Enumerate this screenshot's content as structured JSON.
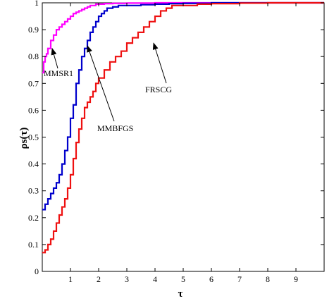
{
  "chart_data": {
    "type": "line",
    "title": "",
    "xlabel": "τ",
    "ylabel": "ρs(τ)",
    "xlim": [
      0,
      10
    ],
    "ylim": [
      0,
      1
    ],
    "xticks": [
      1,
      2,
      3,
      4,
      5,
      6,
      7,
      8,
      9
    ],
    "yticks": [
      0,
      0.1,
      0.2,
      0.3,
      0.4,
      0.5,
      0.6,
      0.7,
      0.8,
      0.9,
      1
    ],
    "grid": false,
    "legend": "none",
    "series": [
      {
        "name": "MMSR1",
        "color": "#ff00ff",
        "x": [
          0,
          0.05,
          0.1,
          0.15,
          0.2,
          0.3,
          0.4,
          0.5,
          0.6,
          0.7,
          0.8,
          0.9,
          1.0,
          1.1,
          1.2,
          1.3,
          1.4,
          1.5,
          1.6,
          1.7,
          1.8,
          1.9,
          2.0,
          2.2,
          2.5,
          3,
          4,
          5,
          6,
          7,
          8,
          9,
          10
        ],
        "y": [
          0.74,
          0.78,
          0.8,
          0.81,
          0.83,
          0.86,
          0.88,
          0.9,
          0.91,
          0.92,
          0.93,
          0.94,
          0.95,
          0.96,
          0.965,
          0.97,
          0.975,
          0.98,
          0.985,
          0.99,
          0.99,
          0.995,
          0.995,
          0.997,
          0.998,
          0.999,
          1,
          1,
          1,
          1,
          1,
          1,
          1
        ]
      },
      {
        "name": "MMBFGS",
        "color": "#0000cc",
        "x": [
          0,
          0.1,
          0.2,
          0.3,
          0.4,
          0.5,
          0.6,
          0.7,
          0.8,
          0.9,
          1.0,
          1.1,
          1.2,
          1.3,
          1.4,
          1.5,
          1.6,
          1.7,
          1.8,
          1.9,
          2.0,
          2.1,
          2.2,
          2.3,
          2.5,
          2.7,
          3,
          3.5,
          4,
          4.5,
          5,
          6,
          7,
          8,
          9,
          10
        ],
        "y": [
          0.23,
          0.25,
          0.27,
          0.29,
          0.31,
          0.33,
          0.36,
          0.4,
          0.45,
          0.5,
          0.57,
          0.62,
          0.7,
          0.75,
          0.8,
          0.83,
          0.86,
          0.89,
          0.91,
          0.93,
          0.95,
          0.96,
          0.97,
          0.98,
          0.985,
          0.99,
          0.99,
          0.993,
          0.995,
          0.997,
          0.998,
          1,
          1,
          1,
          1,
          1
        ]
      },
      {
        "name": "FRSCG",
        "color": "#ee1111",
        "x": [
          0,
          0.1,
          0.2,
          0.3,
          0.4,
          0.5,
          0.6,
          0.7,
          0.8,
          0.9,
          1.0,
          1.1,
          1.2,
          1.3,
          1.4,
          1.5,
          1.6,
          1.7,
          1.8,
          1.9,
          2.0,
          2.2,
          2.4,
          2.6,
          2.8,
          3.0,
          3.2,
          3.4,
          3.6,
          3.8,
          4.0,
          4.2,
          4.4,
          4.6,
          5,
          5.5,
          6,
          7,
          8,
          8.7,
          10
        ],
        "y": [
          0.07,
          0.08,
          0.1,
          0.12,
          0.15,
          0.18,
          0.21,
          0.24,
          0.27,
          0.31,
          0.36,
          0.42,
          0.48,
          0.53,
          0.57,
          0.61,
          0.63,
          0.65,
          0.67,
          0.7,
          0.72,
          0.75,
          0.78,
          0.8,
          0.82,
          0.85,
          0.87,
          0.89,
          0.91,
          0.93,
          0.95,
          0.97,
          0.98,
          0.99,
          0.99,
          0.995,
          0.997,
          0.999,
          1,
          1,
          1
        ]
      }
    ],
    "annotations": [
      {
        "text": "MMSR1",
        "point": [
          0.35,
          0.83
        ]
      },
      {
        "text": "MMBFGS",
        "point": [
          1.6,
          0.84
        ]
      },
      {
        "text": "FRSCG",
        "point": [
          3.95,
          0.85
        ]
      }
    ]
  }
}
